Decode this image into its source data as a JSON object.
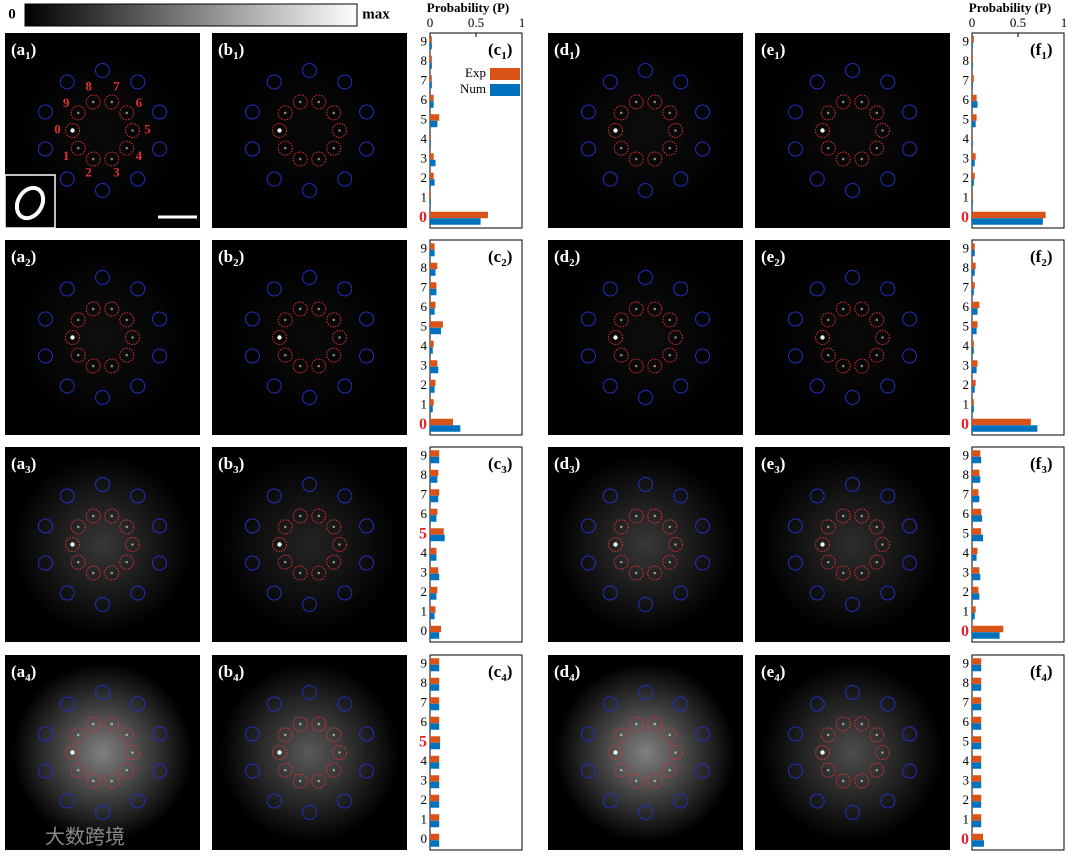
{
  "colorbar": {
    "min": "0",
    "max": "max"
  },
  "digit_labels": [
    "0",
    "1",
    "2",
    "3",
    "4",
    "5",
    "6",
    "7",
    "8",
    "9"
  ],
  "watermark": "大数跨境",
  "panels": [
    {
      "letter": "(a",
      "sub": "1",
      "close": ")"
    },
    {
      "letter": "(b",
      "sub": "1",
      "close": ")"
    },
    {
      "letter": "(d",
      "sub": "1",
      "close": ")"
    },
    {
      "letter": "(e",
      "sub": "1",
      "close": ")"
    },
    {
      "letter": "(a",
      "sub": "2",
      "close": ")"
    },
    {
      "letter": "(b",
      "sub": "2",
      "close": ")"
    },
    {
      "letter": "(d",
      "sub": "2",
      "close": ")"
    },
    {
      "letter": "(e",
      "sub": "2",
      "close": ")"
    },
    {
      "letter": "(a",
      "sub": "3",
      "close": ")"
    },
    {
      "letter": "(b",
      "sub": "3",
      "close": ")"
    },
    {
      "letter": "(d",
      "sub": "3",
      "close": ")"
    },
    {
      "letter": "(e",
      "sub": "3",
      "close": ")"
    },
    {
      "letter": "(a",
      "sub": "4",
      "close": ")"
    },
    {
      "letter": "(b",
      "sub": "4",
      "close": ")"
    },
    {
      "letter": "(d",
      "sub": "4",
      "close": ")"
    },
    {
      "letter": "(e",
      "sub": "4",
      "close": ")"
    }
  ],
  "chart_data": [
    {
      "type": "bar",
      "panel_label": {
        "letter": "(c",
        "sub": "1",
        "close": ")"
      },
      "xlabel": "Probability (P)",
      "xlim": [
        0,
        1
      ],
      "xticks": [
        0,
        0.5,
        1
      ],
      "legend": "upper right",
      "categories": [
        "0",
        "1",
        "2",
        "3",
        "4",
        "5",
        "6",
        "7",
        "8",
        "9"
      ],
      "highlight": 0,
      "highlight_color": "#e8202a",
      "series": [
        {
          "name": "Exp",
          "color": "#d95319",
          "values": [
            0.63,
            0.01,
            0.04,
            0.04,
            0.01,
            0.1,
            0.04,
            0.02,
            0.02,
            0.02
          ]
        },
        {
          "name": "Num",
          "color": "#0072bd",
          "values": [
            0.55,
            0.01,
            0.05,
            0.06,
            0.01,
            0.08,
            0.04,
            0.02,
            0.02,
            0.02
          ]
        }
      ]
    },
    {
      "type": "bar",
      "panel_label": {
        "letter": "(c",
        "sub": "2",
        "close": ")"
      },
      "xlim": [
        0,
        1
      ],
      "categories": [
        "0",
        "1",
        "2",
        "3",
        "4",
        "5",
        "6",
        "7",
        "8",
        "9"
      ],
      "highlight": 0,
      "highlight_color": "#e8202a",
      "series": [
        {
          "color": "#d95319",
          "values": [
            0.25,
            0.04,
            0.06,
            0.08,
            0.04,
            0.14,
            0.06,
            0.07,
            0.08,
            0.05
          ]
        },
        {
          "color": "#0072bd",
          "values": [
            0.33,
            0.03,
            0.05,
            0.09,
            0.03,
            0.12,
            0.05,
            0.07,
            0.06,
            0.05
          ]
        }
      ]
    },
    {
      "type": "bar",
      "panel_label": {
        "letter": "(c",
        "sub": "3",
        "close": ")"
      },
      "xlim": [
        0,
        1
      ],
      "categories": [
        "0",
        "1",
        "2",
        "3",
        "4",
        "5",
        "6",
        "7",
        "8",
        "9"
      ],
      "highlight": 5,
      "highlight_color": "#e8202a",
      "series": [
        {
          "color": "#d95319",
          "values": [
            0.12,
            0.06,
            0.08,
            0.09,
            0.07,
            0.15,
            0.08,
            0.1,
            0.09,
            0.1
          ]
        },
        {
          "color": "#0072bd",
          "values": [
            0.1,
            0.05,
            0.07,
            0.1,
            0.07,
            0.16,
            0.07,
            0.09,
            0.08,
            0.1
          ]
        }
      ]
    },
    {
      "type": "bar",
      "panel_label": {
        "letter": "(c",
        "sub": "4",
        "close": ")"
      },
      "xlim": [
        0,
        1
      ],
      "categories": [
        "0",
        "1",
        "2",
        "3",
        "4",
        "5",
        "6",
        "7",
        "8",
        "9"
      ],
      "highlight": 5,
      "highlight_color": "#e8202a",
      "series": [
        {
          "color": "#d95319",
          "values": [
            0.1,
            0.1,
            0.1,
            0.1,
            0.1,
            0.11,
            0.1,
            0.1,
            0.1,
            0.1
          ]
        },
        {
          "color": "#0072bd",
          "values": [
            0.1,
            0.1,
            0.1,
            0.1,
            0.1,
            0.11,
            0.1,
            0.1,
            0.1,
            0.1
          ]
        }
      ]
    },
    {
      "type": "bar",
      "panel_label": {
        "letter": "(f",
        "sub": "1",
        "close": ")"
      },
      "xlabel": "Probability (P)",
      "xlim": [
        0,
        1
      ],
      "xticks": [
        0,
        0.5,
        1
      ],
      "categories": [
        "0",
        "1",
        "2",
        "3",
        "4",
        "5",
        "6",
        "7",
        "8",
        "9"
      ],
      "highlight": 0,
      "highlight_color": "#e8202a",
      "series": [
        {
          "color": "#d95319",
          "values": [
            0.8,
            0.01,
            0.03,
            0.04,
            0.01,
            0.05,
            0.05,
            0.02,
            0.01,
            0.02
          ]
        },
        {
          "color": "#0072bd",
          "values": [
            0.77,
            0.01,
            0.02,
            0.03,
            0.01,
            0.04,
            0.06,
            0.01,
            0.01,
            0.01
          ]
        }
      ]
    },
    {
      "type": "bar",
      "panel_label": {
        "letter": "(f",
        "sub": "2",
        "close": ")"
      },
      "xlim": [
        0,
        1
      ],
      "categories": [
        "0",
        "1",
        "2",
        "3",
        "4",
        "5",
        "6",
        "7",
        "8",
        "9"
      ],
      "highlight": 0,
      "highlight_color": "#e8202a",
      "series": [
        {
          "color": "#d95319",
          "values": [
            0.64,
            0.02,
            0.04,
            0.06,
            0.02,
            0.06,
            0.08,
            0.03,
            0.04,
            0.03
          ]
        },
        {
          "color": "#0072bd",
          "values": [
            0.71,
            0.02,
            0.03,
            0.05,
            0.02,
            0.05,
            0.06,
            0.02,
            0.03,
            0.03
          ]
        }
      ]
    },
    {
      "type": "bar",
      "panel_label": {
        "letter": "(f",
        "sub": "3",
        "close": ")"
      },
      "xlim": [
        0,
        1
      ],
      "categories": [
        "0",
        "1",
        "2",
        "3",
        "4",
        "5",
        "6",
        "7",
        "8",
        "9"
      ],
      "highlight": 0,
      "highlight_color": "#e8202a",
      "series": [
        {
          "color": "#d95319",
          "values": [
            0.34,
            0.04,
            0.07,
            0.08,
            0.06,
            0.1,
            0.1,
            0.07,
            0.08,
            0.09
          ]
        },
        {
          "color": "#0072bd",
          "values": [
            0.3,
            0.03,
            0.08,
            0.09,
            0.05,
            0.12,
            0.11,
            0.08,
            0.09,
            0.1
          ]
        }
      ]
    },
    {
      "type": "bar",
      "panel_label": {
        "letter": "(f",
        "sub": "4",
        "close": ")"
      },
      "xlim": [
        0,
        1
      ],
      "categories": [
        "0",
        "1",
        "2",
        "3",
        "4",
        "5",
        "6",
        "7",
        "8",
        "9"
      ],
      "highlight": 0,
      "highlight_color": "#e8202a",
      "series": [
        {
          "color": "#d95319",
          "values": [
            0.12,
            0.1,
            0.1,
            0.1,
            0.1,
            0.1,
            0.1,
            0.1,
            0.1,
            0.1
          ]
        },
        {
          "color": "#0072bd",
          "values": [
            0.13,
            0.1,
            0.1,
            0.1,
            0.1,
            0.1,
            0.1,
            0.1,
            0.1,
            0.1
          ]
        }
      ]
    }
  ]
}
